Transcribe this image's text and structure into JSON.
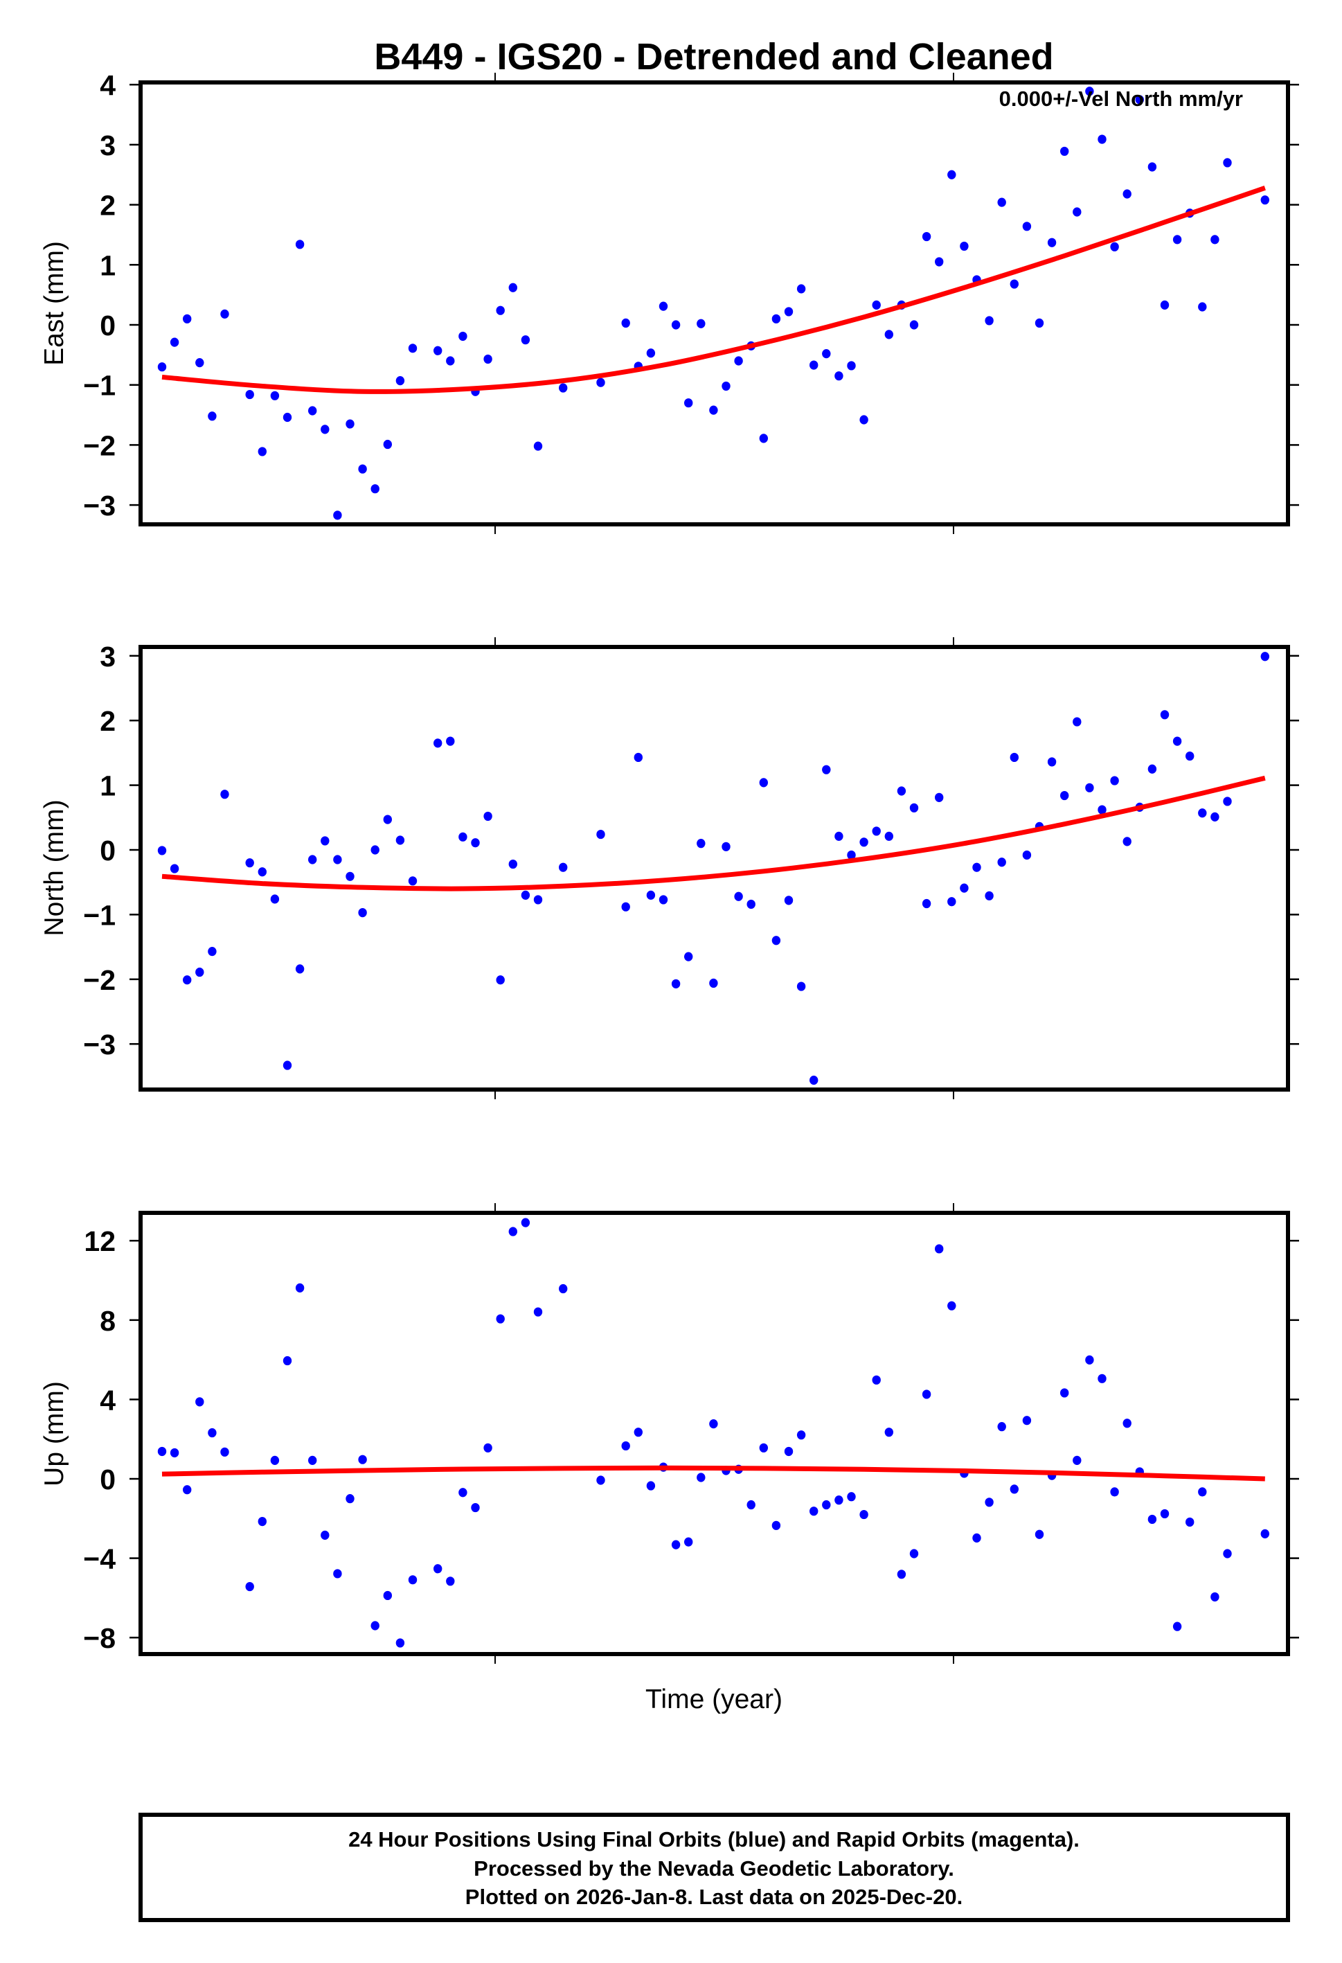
{
  "title": "B449 - IGS20 - Detrended and Cleaned",
  "velocity_annotation": "0.000+/-Vel North mm/yr",
  "xlabel": "Time (year)",
  "footer": {
    "line1": "24 Hour Positions Using Final Orbits (blue) and Rapid Orbits (magenta).",
    "line2": "Processed by the Nevada Geodetic Laboratory.",
    "line3": "Plotted on 2026-Jan-8. Last data on 2025-Dec-20."
  },
  "colors": {
    "points_final": "#0000ff",
    "points_rapid": "#ff00ff",
    "fit_line": "#ff0000",
    "frame": "#000000"
  },
  "chart_data": [
    {
      "type": "scatter",
      "title": "B449 - IGS20 - Detrended and Cleaned",
      "panel": "East",
      "xlabel": "",
      "ylabel": "East (mm)",
      "ylim": [
        -3.35,
        4.1
      ],
      "yticks": [
        4,
        3,
        2,
        1,
        0,
        -1,
        -2,
        -3
      ],
      "ytick_labels": [
        "4",
        "3",
        "2",
        "1",
        "0",
        "−1",
        "−2",
        "−3"
      ],
      "annotation": "0.000+/-Vel North mm/yr",
      "x_note": "x = weekly sample index (0 = first epoch, 88 = last epoch); x-axis tick labels not shown",
      "x": [
        0,
        1,
        2,
        3,
        4,
        5,
        7,
        8,
        9,
        10,
        11,
        12,
        13,
        14,
        15,
        16,
        17,
        18,
        19,
        20,
        22,
        23,
        24,
        25,
        26,
        27,
        28,
        29,
        30,
        32,
        35,
        37,
        38,
        39,
        40,
        41,
        42,
        43,
        44,
        45,
        46,
        47,
        48,
        49,
        50,
        51,
        52,
        53,
        54,
        55,
        56,
        57,
        58,
        59,
        60,
        61,
        62,
        63,
        64,
        65,
        66,
        67,
        68,
        69,
        70,
        71,
        72,
        73,
        74,
        75,
        76,
        77,
        78,
        79,
        80,
        81,
        82,
        83,
        84,
        85,
        88
      ],
      "values": [
        -0.7,
        -0.29,
        0.1,
        -0.63,
        -1.52,
        0.18,
        -1.16,
        -2.11,
        -1.18,
        -1.54,
        1.34,
        -1.43,
        -1.74,
        -3.17,
        -1.65,
        -2.4,
        -2.73,
        -1.99,
        -0.93,
        -0.39,
        -0.43,
        -0.6,
        -0.19,
        -1.11,
        -0.57,
        0.24,
        0.62,
        -0.25,
        -2.02,
        -1.05,
        -0.96,
        0.03,
        -0.69,
        -0.47,
        0.31,
        0.0,
        -1.3,
        0.02,
        -1.42,
        -1.02,
        -0.6,
        -0.35,
        -1.89,
        0.1,
        0.22,
        0.6,
        -0.67,
        -0.48,
        -0.85,
        -0.68,
        -1.58,
        0.33,
        -0.16,
        0.33,
        0.0,
        1.47,
        1.05,
        2.5,
        1.31,
        0.75,
        0.07,
        2.04,
        0.68,
        1.64,
        0.03,
        1.37,
        2.89,
        1.88,
        3.89,
        3.09,
        1.3,
        2.18,
        3.75,
        2.63,
        0.33,
        1.42,
        1.86,
        0.3,
        1.42,
        2.7,
        2.08
      ],
      "fit": {
        "name": "model fit",
        "x": [
          0,
          8,
          16,
          24,
          32,
          40,
          48,
          56,
          64,
          72,
          80,
          88
        ],
        "values": [
          -0.87,
          -1.02,
          -1.11,
          -1.07,
          -0.93,
          -0.67,
          -0.3,
          0.13,
          0.62,
          1.15,
          1.71,
          2.28
        ]
      }
    },
    {
      "type": "scatter",
      "panel": "North",
      "xlabel": "",
      "ylabel": "North (mm)",
      "ylim": [
        -3.7,
        3.12
      ],
      "yticks": [
        3,
        2,
        1,
        0,
        -1,
        -2,
        -3
      ],
      "ytick_labels": [
        "3",
        "2",
        "1",
        "0",
        "−1",
        "−2",
        "−3"
      ],
      "x": [
        0,
        1,
        2,
        3,
        4,
        5,
        7,
        8,
        9,
        10,
        11,
        12,
        13,
        14,
        15,
        16,
        17,
        18,
        19,
        20,
        22,
        23,
        24,
        25,
        26,
        27,
        28,
        29,
        30,
        32,
        35,
        37,
        38,
        39,
        40,
        41,
        42,
        43,
        44,
        45,
        46,
        47,
        48,
        49,
        50,
        51,
        52,
        53,
        54,
        55,
        56,
        57,
        58,
        59,
        60,
        61,
        62,
        63,
        64,
        65,
        66,
        67,
        68,
        69,
        70,
        71,
        72,
        73,
        74,
        75,
        76,
        77,
        78,
        79,
        80,
        81,
        82,
        83,
        84,
        85,
        88
      ],
      "values": [
        -0.01,
        -0.29,
        -2.01,
        -1.89,
        -1.57,
        0.86,
        -0.2,
        -0.34,
        -0.76,
        -3.33,
        -1.84,
        -0.15,
        0.14,
        -0.15,
        -0.41,
        -0.97,
        0.0,
        0.47,
        0.15,
        -0.48,
        1.65,
        1.68,
        0.2,
        0.11,
        0.52,
        -2.01,
        -0.22,
        -0.7,
        -0.77,
        -0.27,
        0.24,
        -0.88,
        1.43,
        -0.7,
        -0.77,
        -2.07,
        -1.65,
        0.1,
        -2.06,
        0.05,
        -0.72,
        -0.84,
        1.04,
        -1.4,
        -0.78,
        -2.11,
        -3.56,
        1.24,
        0.21,
        -0.08,
        0.12,
        0.29,
        0.21,
        0.91,
        0.65,
        -0.83,
        0.81,
        -0.8,
        -0.59,
        -0.27,
        -0.71,
        -0.19,
        1.43,
        -0.08,
        0.36,
        1.36,
        0.84,
        1.98,
        0.96,
        0.62,
        1.07,
        0.13,
        0.66,
        1.25,
        2.09,
        1.68,
        1.45,
        0.57,
        0.51,
        0.75,
        2.99
      ],
      "fit": {
        "name": "model fit",
        "x": [
          0,
          8,
          16,
          24,
          32,
          40,
          48,
          56,
          64,
          72,
          80,
          88
        ],
        "values": [
          -0.41,
          -0.52,
          -0.58,
          -0.6,
          -0.56,
          -0.47,
          -0.33,
          -0.14,
          0.1,
          0.4,
          0.74,
          1.11
        ]
      }
    },
    {
      "type": "scatter",
      "panel": "Up",
      "xlabel": "Time (year)",
      "ylabel": "Up (mm)",
      "ylim": [
        -8.9,
        13.4
      ],
      "yticks": [
        12,
        8,
        4,
        0,
        -4,
        -8
      ],
      "ytick_labels": [
        "12",
        "8",
        "4",
        "0",
        "−4",
        "−8"
      ],
      "x": [
        0,
        1,
        2,
        3,
        4,
        5,
        7,
        8,
        9,
        10,
        11,
        12,
        13,
        14,
        15,
        16,
        17,
        18,
        19,
        20,
        22,
        23,
        24,
        25,
        26,
        27,
        28,
        29,
        30,
        32,
        35,
        37,
        38,
        39,
        40,
        41,
        42,
        43,
        44,
        45,
        46,
        47,
        48,
        49,
        50,
        51,
        52,
        53,
        54,
        55,
        56,
        57,
        58,
        59,
        60,
        61,
        62,
        63,
        64,
        65,
        66,
        67,
        68,
        69,
        70,
        71,
        72,
        73,
        74,
        75,
        76,
        77,
        78,
        79,
        80,
        81,
        82,
        83,
        84,
        85,
        88
      ],
      "values": [
        1.38,
        1.31,
        -0.55,
        3.88,
        2.32,
        1.35,
        -5.43,
        -2.15,
        0.93,
        5.95,
        9.62,
        0.93,
        -2.84,
        -4.78,
        -1.0,
        0.97,
        -7.4,
        -5.88,
        -8.27,
        -5.09,
        -4.53,
        -5.16,
        -0.69,
        -1.45,
        1.56,
        8.06,
        12.46,
        12.91,
        8.41,
        9.58,
        -0.07,
        1.66,
        2.35,
        -0.35,
        0.59,
        -3.32,
        -3.18,
        0.07,
        2.77,
        0.42,
        0.48,
        -1.31,
        1.56,
        -2.35,
        1.38,
        2.21,
        -1.63,
        -1.31,
        -1.07,
        -0.9,
        -1.8,
        4.98,
        2.35,
        -4.81,
        -3.77,
        4.26,
        11.59,
        8.72,
        0.28,
        -2.98,
        -1.18,
        2.63,
        -0.52,
        2.94,
        -2.8,
        0.17,
        4.33,
        0.93,
        5.99,
        5.05,
        -0.66,
        2.8,
        0.35,
        -2.04,
        -1.76,
        -7.44,
        -2.18,
        -0.66,
        -5.95,
        -3.77,
        -2.77
      ],
      "fit": {
        "name": "model fit",
        "x": [
          0,
          8,
          16,
          24,
          32,
          40,
          48,
          56,
          64,
          72,
          80,
          88
        ],
        "values": [
          0.24,
          0.34,
          0.42,
          0.49,
          0.53,
          0.55,
          0.53,
          0.48,
          0.4,
          0.29,
          0.15,
          0.0
        ]
      }
    }
  ]
}
